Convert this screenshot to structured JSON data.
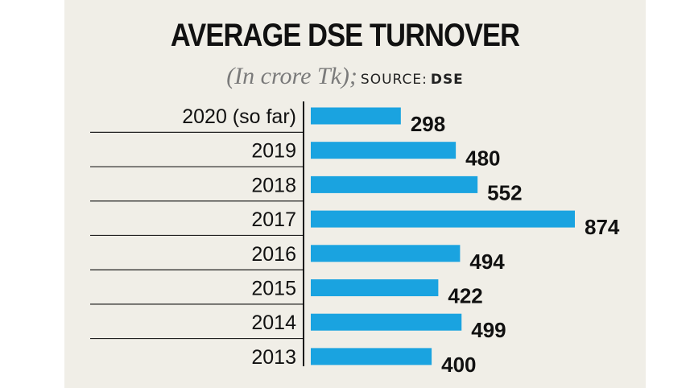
{
  "title": "AVERAGE DSE TURNOVER",
  "subtitle_unit": "(In crore Tk);",
  "source_label": "SOURCE:",
  "source_name": "DSE",
  "colors": {
    "bar": "#1aa3e0",
    "background": "#f0eee7",
    "text": "#111111"
  },
  "chart_data": {
    "type": "bar",
    "orientation": "horizontal",
    "title": "AVERAGE DSE TURNOVER",
    "subtitle": "(In crore Tk); SOURCE: DSE",
    "categories": [
      "2020 (so far)",
      "2019",
      "2018",
      "2017",
      "2016",
      "2015",
      "2014",
      "2013"
    ],
    "values": [
      298,
      480,
      552,
      874,
      494,
      422,
      499,
      400
    ],
    "data_labels": [
      "298",
      "480",
      "552",
      "874",
      "494",
      "422",
      "499",
      "400"
    ],
    "xlim": [
      0,
      874
    ],
    "grid": false,
    "legend": "none"
  }
}
